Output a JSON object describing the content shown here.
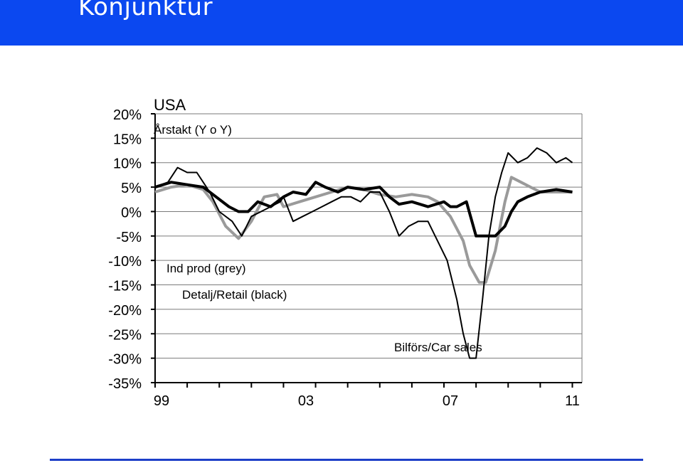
{
  "header": {
    "title": "Konjunktur"
  },
  "colors": {
    "banner": "#0b48f0",
    "footer_line": "#1d3fc8",
    "series_black": "#000000",
    "series_grey": "#9a9a9a"
  },
  "chart_data": {
    "type": "line",
    "title": "USA",
    "subtitle": "Årstakt (Y o Y)",
    "ylim": [
      -35,
      20
    ],
    "y_ticks": [
      "20%",
      "15%",
      "10%",
      "5%",
      "0%",
      "-5%",
      "-10%",
      "-15%",
      "-20%",
      "-25%",
      "-30%",
      "-35%"
    ],
    "xlim": [
      1999.0,
      2012.3
    ],
    "x_ticks": [
      {
        "label": "99",
        "value": 1999.2
      },
      {
        "label": "03",
        "value": 2003.7
      },
      {
        "label": "07",
        "value": 2008.2
      },
      {
        "label": "11",
        "value": 2012.0
      }
    ],
    "grid": true,
    "annotations": {
      "ind_prod": "Ind prod (grey)",
      "retail": "Detalj/Retail (black)",
      "car_sales": "Bilförs/Car sales"
    },
    "series": [
      {
        "name": "Ind prod (grey)",
        "color": "#9a9a9a",
        "x": [
          1999.0,
          1999.5,
          2000.0,
          2000.5,
          2000.8,
          2001.2,
          2001.6,
          2002.0,
          2002.4,
          2002.8,
          2003.0,
          2003.5,
          2004.0,
          2004.5,
          2005.0,
          2005.5,
          2006.0,
          2006.5,
          2007.0,
          2007.5,
          2007.8,
          2008.2,
          2008.6,
          2008.8,
          2009.1,
          2009.3,
          2009.6,
          2009.9,
          2010.1,
          2010.4,
          2010.7,
          2011.0,
          2011.5,
          2012.0
        ],
        "y": [
          4,
          5,
          5.5,
          4.5,
          2,
          -3,
          -5.5,
          -2,
          3,
          3.5,
          1,
          2,
          3,
          4,
          5,
          4.5,
          3.5,
          3,
          3.5,
          3,
          2,
          -1,
          -6,
          -11,
          -14.5,
          -14.5,
          -8,
          2,
          7,
          6,
          5,
          4,
          4,
          4
        ]
      },
      {
        "name": "Detalj/Retail (black)",
        "color": "#000000",
        "x": [
          1999.0,
          1999.5,
          2000.0,
          2000.5,
          2000.9,
          2001.3,
          2001.6,
          2001.9,
          2002.2,
          2002.6,
          2003.0,
          2003.3,
          2003.7,
          2004.0,
          2004.3,
          2004.7,
          2005.0,
          2005.5,
          2006.0,
          2006.3,
          2006.6,
          2007.0,
          2007.5,
          2008.0,
          2008.2,
          2008.4,
          2008.7,
          2009.0,
          2009.3,
          2009.6,
          2009.9,
          2010.1,
          2010.3,
          2010.6,
          2011.0,
          2011.5,
          2012.0
        ],
        "y": [
          5,
          6,
          5.5,
          5,
          3,
          1,
          0,
          0,
          2,
          1,
          3,
          4,
          3.5,
          6,
          5,
          4,
          5,
          4.5,
          5,
          3,
          1.5,
          2,
          1,
          2,
          1,
          1,
          2,
          -5,
          -5,
          -5,
          -3,
          0,
          2,
          3,
          4,
          4.5,
          4
        ]
      },
      {
        "name": "Bilförs/Car sales",
        "color": "#000000",
        "x": [
          1999.0,
          1999.4,
          1999.7,
          2000.0,
          2000.3,
          2000.7,
          2001.0,
          2001.4,
          2001.7,
          2002.0,
          2002.3,
          2002.6,
          2002.9,
          2003.0,
          2003.3,
          2003.6,
          2003.9,
          2004.2,
          2004.5,
          2004.8,
          2005.1,
          2005.4,
          2005.7,
          2006.0,
          2006.3,
          2006.6,
          2006.9,
          2007.2,
          2007.5,
          2007.8,
          2008.1,
          2008.4,
          2008.6,
          2008.8,
          2009.0,
          2009.2,
          2009.4,
          2009.6,
          2009.8,
          2010.0,
          2010.3,
          2010.6,
          2010.9,
          2011.2,
          2011.5,
          2011.8,
          2012.0
        ],
        "y": [
          5,
          6,
          9,
          8,
          8,
          4,
          0,
          -2,
          -5,
          -1,
          0,
          1,
          2,
          3,
          -2,
          -1,
          0,
          1,
          2,
          3,
          3,
          2,
          4,
          4,
          0,
          -5,
          -3,
          -2,
          -2,
          -6,
          -10,
          -18,
          -25,
          -30,
          -30,
          -18,
          -5,
          3,
          8,
          12,
          10,
          11,
          13,
          12,
          10,
          11,
          10
        ]
      }
    ]
  }
}
